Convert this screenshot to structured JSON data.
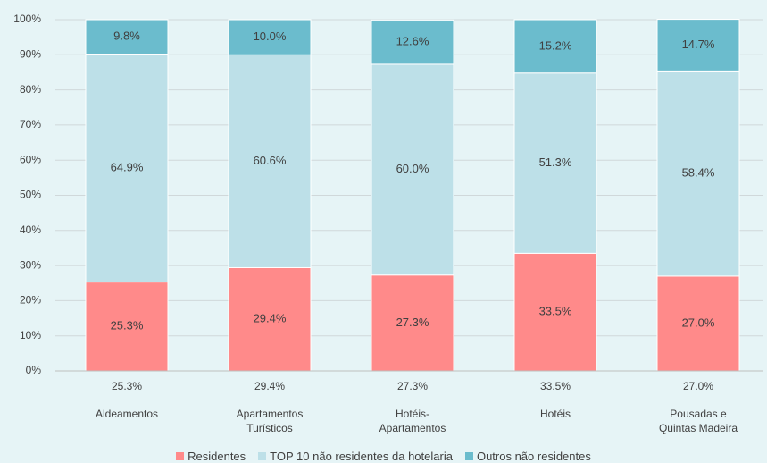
{
  "chart_data": {
    "type": "stacked_bar",
    "categories": [
      "Aldeamentos",
      "Apartamentos Turísticos",
      "Hotéis-Apartamentos",
      "Hotéis",
      "Pousadas e Quintas Madeira"
    ],
    "series": [
      {
        "name": "Residentes",
        "color": "#ff8a8a",
        "values": [
          25.3,
          29.4,
          27.3,
          33.5,
          27.0
        ],
        "value_labels": [
          "25.3%",
          "29.4%",
          "27.3%",
          "33.5%",
          "27.0%"
        ]
      },
      {
        "name": "TOP 10 não residentes da hotelaria",
        "color": "#bde0e8",
        "values": [
          64.9,
          60.6,
          60.0,
          51.3,
          58.4
        ],
        "value_labels": [
          "64.9%",
          "60.6%",
          "60.0%",
          "51.3%",
          "58.4%"
        ]
      },
      {
        "name": "Outros não residentes",
        "color": "#6bbccd",
        "values": [
          9.8,
          10.0,
          12.6,
          15.2,
          14.7
        ],
        "value_labels": [
          "9.8%",
          "10.0%",
          "12.6%",
          "15.2%",
          "14.7%"
        ]
      }
    ],
    "ylim": [
      0,
      100
    ],
    "yticks": [
      {
        "value": 0,
        "label": "0%"
      },
      {
        "value": 10,
        "label": "10%"
      },
      {
        "value": 20,
        "label": "20%"
      },
      {
        "value": 30,
        "label": "30%"
      },
      {
        "value": 40,
        "label": "40%"
      },
      {
        "value": 50,
        "label": "50%"
      },
      {
        "value": 60,
        "label": "60%"
      },
      {
        "value": 70,
        "label": "70%"
      },
      {
        "value": 80,
        "label": "80%"
      },
      {
        "value": 90,
        "label": "90%"
      },
      {
        "value": 100,
        "label": "100%"
      }
    ],
    "grid": true,
    "legend": "bottom"
  }
}
